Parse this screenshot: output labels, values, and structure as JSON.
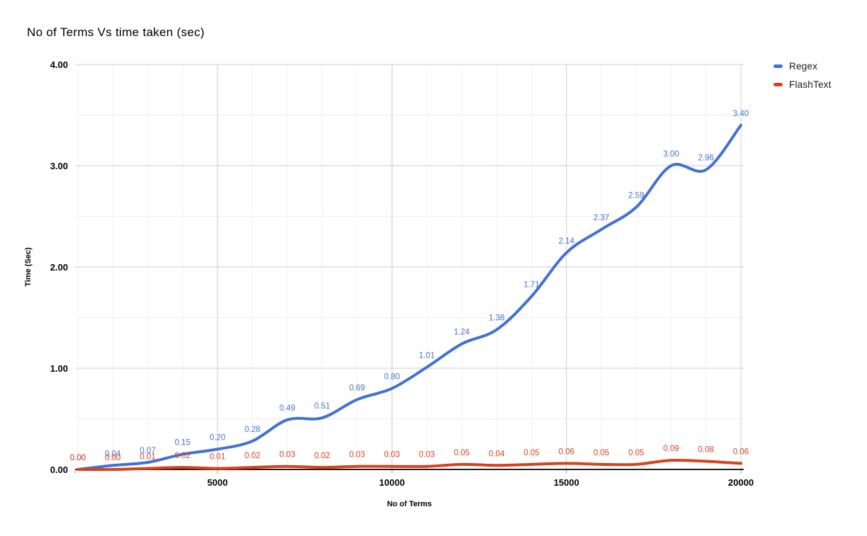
{
  "chart": {
    "title": "No of Terms Vs time taken (sec)",
    "x_axis_title": "No of Terms",
    "y_axis_title": "Time (Sec)"
  },
  "chart_data": {
    "type": "line",
    "title": "No of Terms Vs time taken (sec)",
    "xlabel": "No of Terms",
    "ylabel": "Time (Sec)",
    "x": [
      1000,
      2000,
      3000,
      4000,
      5000,
      6000,
      7000,
      8000,
      9000,
      10000,
      11000,
      12000,
      13000,
      14000,
      15000,
      16000,
      17000,
      18000,
      19000,
      20000
    ],
    "series": [
      {
        "name": "Regex",
        "color": "#4271d3",
        "values": [
          0.0,
          0.04,
          0.07,
          0.15,
          0.2,
          0.28,
          0.49,
          0.51,
          0.69,
          0.8,
          1.01,
          1.24,
          1.38,
          1.71,
          2.14,
          2.37,
          2.59,
          3.0,
          2.96,
          3.4
        ]
      },
      {
        "name": "FlashText",
        "color": "#d6421c",
        "values": [
          0.0,
          0.0,
          0.01,
          0.02,
          0.01,
          0.02,
          0.03,
          0.02,
          0.03,
          0.03,
          0.03,
          0.05,
          0.04,
          0.05,
          0.06,
          0.05,
          0.05,
          0.09,
          0.08,
          0.06
        ]
      }
    ],
    "xlim": [
      1000,
      20000
    ],
    "ylim": [
      0,
      4
    ],
    "x_ticks": [
      5000,
      10000,
      15000,
      20000
    ],
    "x_tick_labels": [
      "5000",
      "10000",
      "15000",
      "20000"
    ],
    "y_ticks": [
      0,
      1,
      2,
      3,
      4
    ],
    "y_tick_labels": [
      "0.00",
      "1.00",
      "2.00",
      "3.00",
      "4.00"
    ],
    "y_minor_ticks": [
      0.5,
      1.5,
      2.5,
      3.5
    ],
    "x_minor_step": 1000,
    "grid": true,
    "smooth": true,
    "data_labels": true,
    "legend_position": "right",
    "colors": {
      "grid_major": "#cccccc",
      "grid_minor_h": "#ededed",
      "grid_minor_v": "#f2f2f2",
      "baseline": "#212121",
      "axis_text": "#000000"
    }
  }
}
